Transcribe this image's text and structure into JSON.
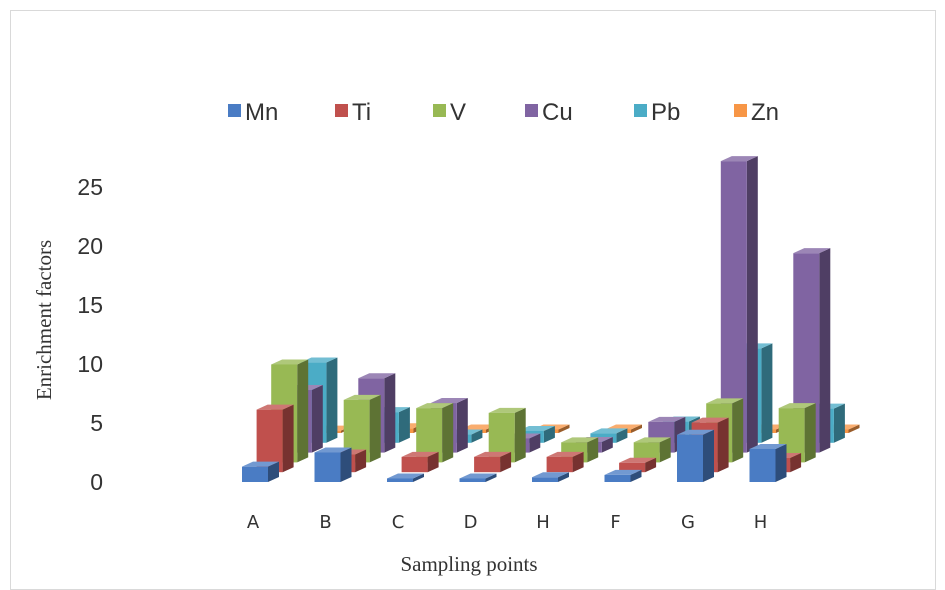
{
  "chart_data": {
    "type": "bar",
    "title": "",
    "xlabel": "Sampling points",
    "ylabel": "Enrichment factors",
    "ylim": [
      0,
      25
    ],
    "yticks": [
      "0",
      "5",
      "10",
      "15",
      "20",
      "25"
    ],
    "categories": [
      "A",
      "B",
      "C",
      "D",
      "H",
      "F",
      "G",
      "H"
    ],
    "legend_position": "top",
    "series": [
      {
        "name": "Mn",
        "color": "#4a7cc4",
        "values": [
          1.3,
          2.5,
          0.3,
          0.3,
          0.4,
          0.6,
          4.0,
          2.8
        ]
      },
      {
        "name": "Ti",
        "color": "#c0504d",
        "values": [
          5.3,
          1.5,
          1.3,
          1.3,
          1.3,
          0.8,
          4.2,
          1.2
        ]
      },
      {
        "name": "V",
        "color": "#98b954",
        "values": [
          8.3,
          5.3,
          4.6,
          4.2,
          1.7,
          1.7,
          5.0,
          4.6
        ]
      },
      {
        "name": "Cu",
        "color": "#8064a2",
        "values": [
          5.3,
          6.3,
          4.2,
          1.2,
          0.9,
          2.6,
          24.7,
          16.9
        ]
      },
      {
        "name": "Pb",
        "color": "#4bacc6",
        "values": [
          6.8,
          2.6,
          0.7,
          1.0,
          0.8,
          1.8,
          8.0,
          2.9
        ]
      },
      {
        "name": "Zn",
        "color": "#f79646",
        "values": [
          0.2,
          0.4,
          0.3,
          0.3,
          0.3,
          0.3,
          0.3,
          0.3
        ]
      }
    ]
  }
}
